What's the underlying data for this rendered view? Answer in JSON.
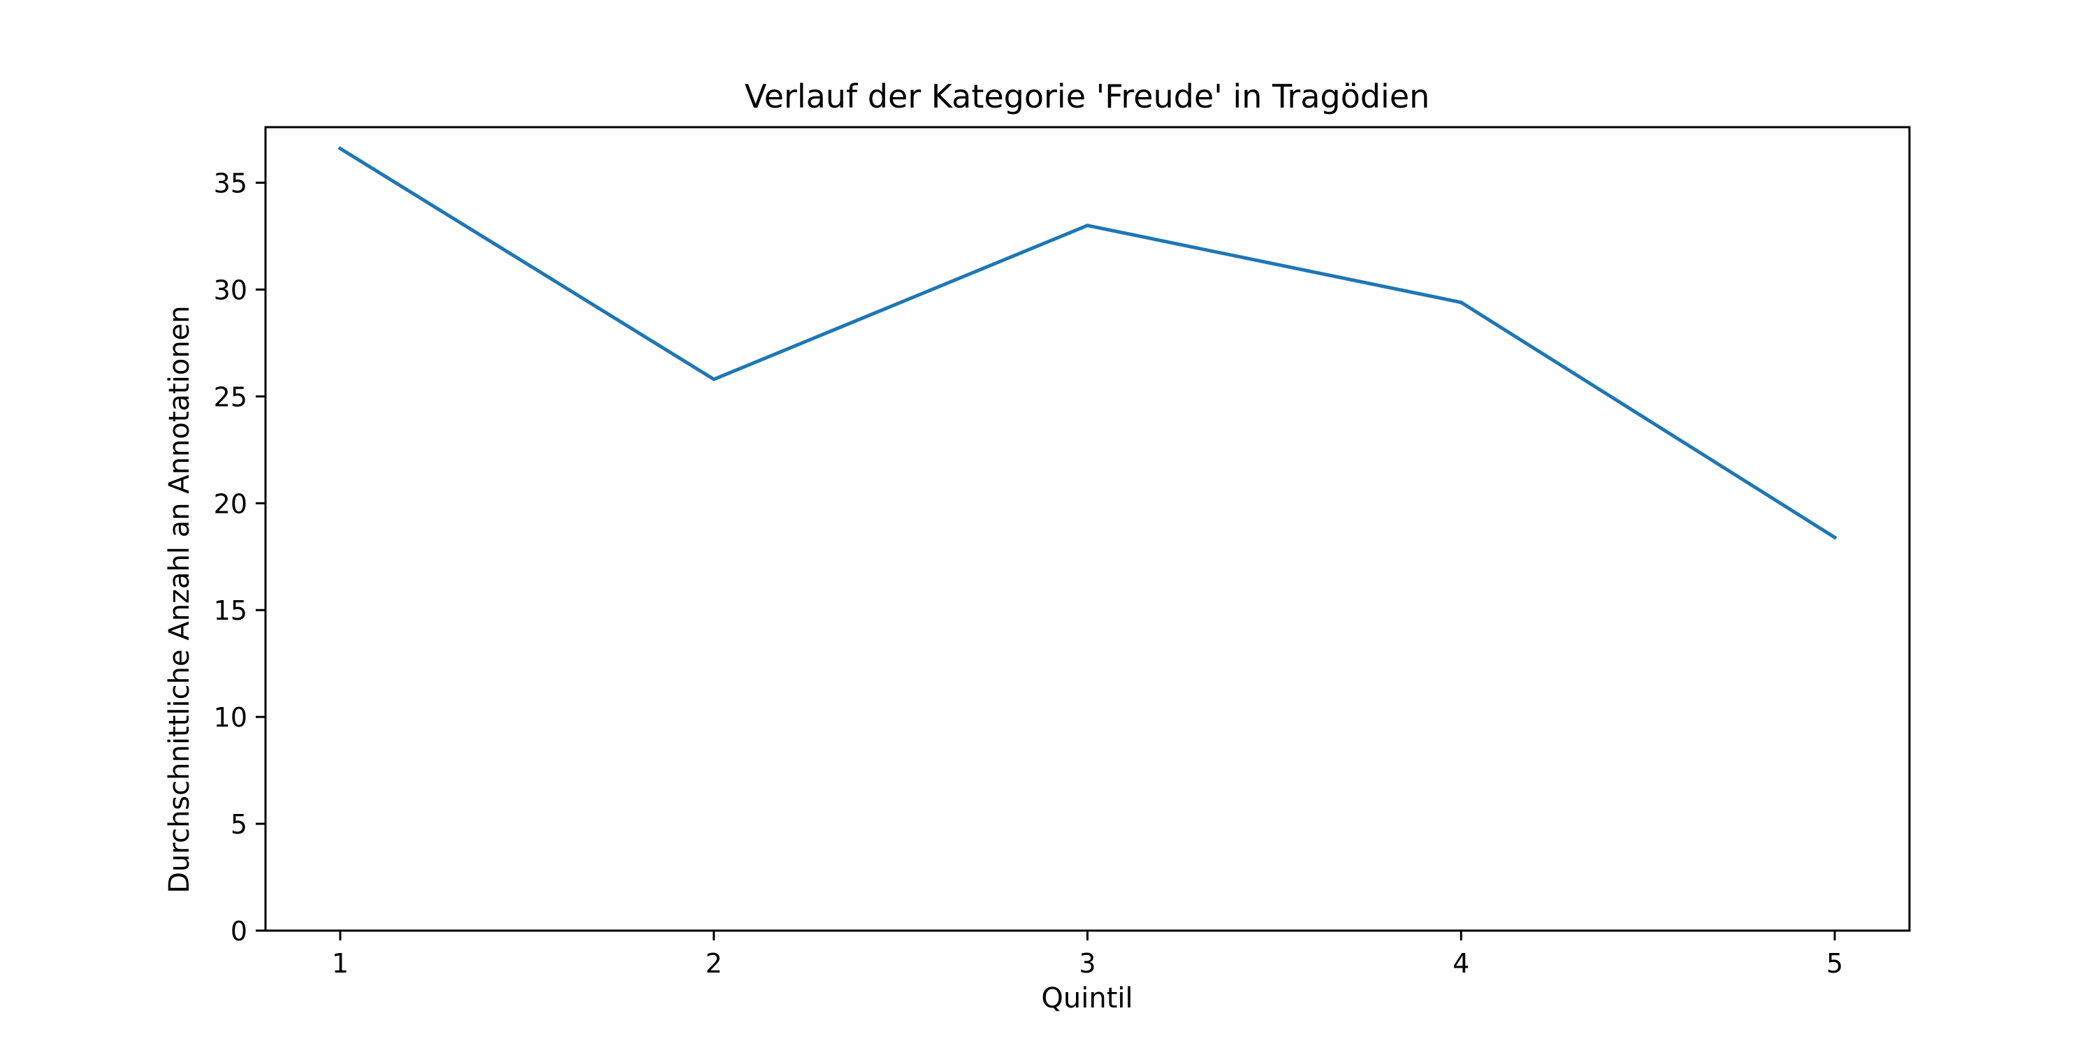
{
  "chart_data": {
    "type": "line",
    "title": "Verlauf der Kategorie 'Freude' in Tragödien",
    "xlabel": "Quintil",
    "ylabel": "Durchschnittliche Anzahl an Annotationen",
    "x": [
      1,
      2,
      3,
      4,
      5
    ],
    "xticks": [
      "1",
      "2",
      "3",
      "4",
      "5"
    ],
    "xlim": [
      0.8,
      5.2
    ],
    "ylim": [
      0,
      37.6
    ],
    "yticks": [
      0,
      5,
      10,
      15,
      20,
      25,
      30,
      35
    ],
    "grid": false,
    "series": [
      {
        "values": [
          36.6,
          25.8,
          33.0,
          29.4,
          18.4
        ],
        "color": "#1f77b4"
      }
    ]
  }
}
